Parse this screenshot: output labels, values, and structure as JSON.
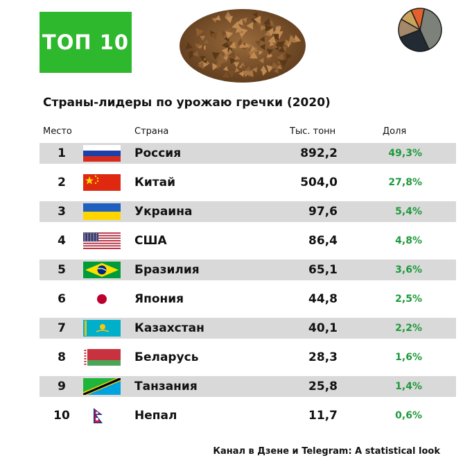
{
  "badge": {
    "label": "ТОП 10"
  },
  "chart_data": {
    "type": "table",
    "title": "Страны-лидеры по урожаю гречки (2020)",
    "columns": [
      "Место",
      "Страна",
      "Тыс. тонн",
      "Доля"
    ],
    "rows": [
      {
        "rank": "1",
        "country": "Россия",
        "value": "892,2",
        "share": "49,3%",
        "flag": "russia-flag-icon"
      },
      {
        "rank": "2",
        "country": "Китай",
        "value": "504,0",
        "share": "27,8%",
        "flag": "china-flag-icon"
      },
      {
        "rank": "3",
        "country": "Украина",
        "value": "97,6",
        "share": "5,4%",
        "flag": "ukraine-flag-icon"
      },
      {
        "rank": "4",
        "country": "США",
        "value": "86,4",
        "share": "4,8%",
        "flag": "usa-flag-icon"
      },
      {
        "rank": "5",
        "country": "Бразилия",
        "value": "65,1",
        "share": "3,6%",
        "flag": "brazil-flag-icon"
      },
      {
        "rank": "6",
        "country": "Япония",
        "value": "44,8",
        "share": "2,5%",
        "flag": "japan-flag-icon"
      },
      {
        "rank": "7",
        "country": "Казахстан",
        "value": "40,1",
        "share": "2,2%",
        "flag": "kazakhstan-flag-icon"
      },
      {
        "rank": "8",
        "country": "Беларусь",
        "value": "28,3",
        "share": "1,6%",
        "flag": "belarus-flag-icon"
      },
      {
        "rank": "9",
        "country": "Танзания",
        "value": "25,8",
        "share": "1,4%",
        "flag": "tanzania-flag-icon"
      },
      {
        "rank": "10",
        "country": "Непал",
        "value": "11,7",
        "share": "0,6%",
        "flag": "nepal-flag-icon"
      }
    ]
  },
  "decor": {
    "grain_icon": "buckwheat-grains-icon",
    "pie_icon": "pie-chart-icon",
    "pie_colors": [
      "#7c8279",
      "#222a33",
      "#a3886a",
      "#c9a45a",
      "#e2622d"
    ]
  },
  "colors": {
    "badge": "#2db82d",
    "share_text": "#1f9a3c",
    "row_shade": "#d9d9d9"
  },
  "footer": {
    "text": "Канал в Дзене и Telegram: A statistical look"
  }
}
